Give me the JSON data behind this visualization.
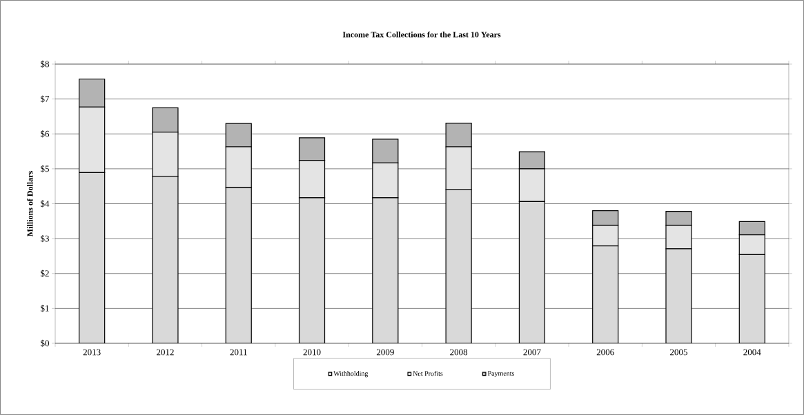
{
  "chart_data": {
    "type": "bar",
    "stacked": true,
    "title": "Income Tax Collections for the Last 10 Years",
    "ylabel": "Millions of Dollars",
    "categories": [
      "2013",
      "2012",
      "2011",
      "2010",
      "2009",
      "2008",
      "2007",
      "2006",
      "2005",
      "2004"
    ],
    "series": [
      {
        "name": "Withholding",
        "color": "#d9d9d9",
        "values": [
          4.89,
          4.78,
          4.46,
          4.17,
          4.17,
          4.41,
          4.06,
          2.79,
          2.71,
          2.54
        ]
      },
      {
        "name": "Net Profits",
        "color": "#e4e4e4",
        "values": [
          1.88,
          1.27,
          1.17,
          1.07,
          1.0,
          1.22,
          0.94,
          0.59,
          0.67,
          0.57
        ]
      },
      {
        "name": "Payments",
        "color": "#b3b3b3",
        "values": [
          0.8,
          0.7,
          0.67,
          0.65,
          0.68,
          0.68,
          0.49,
          0.42,
          0.4,
          0.38
        ]
      }
    ],
    "ylim": [
      0,
      8
    ],
    "yticks": [
      {
        "value": 0,
        "label": "$0"
      },
      {
        "value": 1,
        "label": "$1"
      },
      {
        "value": 2,
        "label": "$2"
      },
      {
        "value": 3,
        "label": "$3"
      },
      {
        "value": 4,
        "label": "$4"
      },
      {
        "value": 5,
        "label": "$5"
      },
      {
        "value": 6,
        "label": "$6"
      },
      {
        "value": 7,
        "label": "$7"
      },
      {
        "value": 8,
        "label": "$8"
      }
    ],
    "grid": "y",
    "legend": "bottom"
  }
}
